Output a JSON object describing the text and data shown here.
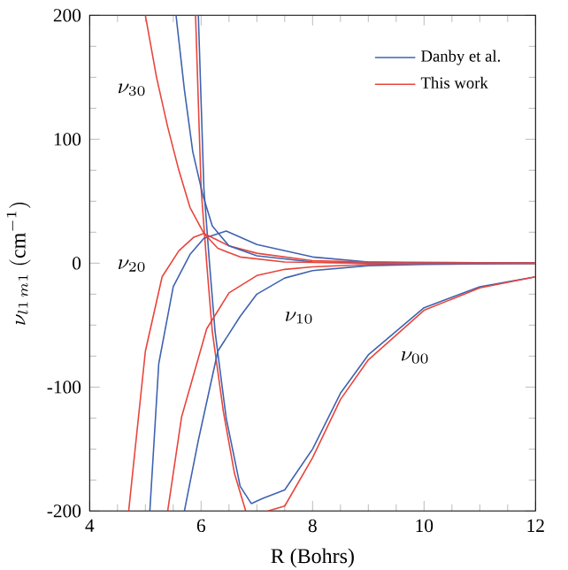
{
  "chart_data": {
    "type": "line",
    "xlabel": "R (Bohrs)",
    "ylabel": "\\nu_{l1\\,m1}\\ (\\mathrm{cm}^{-1})",
    "xlim": [
      4,
      12
    ],
    "ylim": [
      -200,
      200
    ],
    "xticks": [
      4,
      6,
      8,
      10,
      12
    ],
    "yticks": [
      -200,
      -100,
      0,
      100,
      200
    ],
    "legend": "top right",
    "series": [
      {
        "name": "Danby et al.",
        "color": "#3f63b0",
        "x": [
          5.95,
          6.05,
          6.15,
          6.25,
          6.45,
          6.7,
          6.9,
          7.1,
          7.5,
          8,
          8.5,
          9,
          10,
          11,
          12
        ],
        "values": [
          200,
          60,
          0,
          -55,
          -125,
          -180,
          -194,
          -190,
          -183,
          -150,
          -105,
          -74,
          -36,
          -19,
          -11
        ]
      },
      {
        "name": "This work",
        "color": "#e8453c",
        "x": [
          5.9,
          6.0,
          6.1,
          6.2,
          6.4,
          6.6,
          6.8,
          7.0,
          7.2,
          7.5,
          8,
          8.5,
          9,
          10,
          11,
          12
        ],
        "values": [
          200,
          60,
          0,
          -55,
          -120,
          -170,
          -200,
          null,
          -200,
          -196,
          -157,
          -110,
          -78,
          -38,
          -20,
          -11
        ]
      },
      {
        "color": "#3f63b0",
        "x": [
          5.7,
          5.95,
          6.3,
          6.7,
          7,
          7.5,
          8,
          9,
          10,
          12
        ],
        "values": [
          -200,
          -143,
          -71,
          -43,
          -25,
          -12,
          -6,
          -2,
          -1,
          0
        ]
      },
      {
        "color": "#e8453c",
        "x": [
          5.4,
          5.65,
          6.1,
          6.5,
          7,
          7.5,
          8,
          9,
          10,
          12
        ],
        "values": [
          -200,
          -124,
          -53,
          -24,
          -10,
          -5,
          -3,
          -1,
          0,
          0
        ]
      },
      {
        "color": "#3f63b0",
        "x": [
          5.08,
          5.24,
          5.5,
          5.8,
          6.05,
          6.45,
          7,
          8,
          9,
          10,
          12
        ],
        "values": [
          -200,
          -81,
          -19,
          7,
          20,
          26,
          15,
          5,
          1,
          0,
          0
        ]
      },
      {
        "color": "#e8453c",
        "x": [
          4.7,
          5.0,
          5.3,
          5.6,
          5.87,
          6.05,
          6.5,
          7,
          8,
          9,
          12
        ],
        "values": [
          -200,
          -71,
          -11,
          10,
          21,
          24,
          14,
          8,
          2,
          1,
          0
        ]
      },
      {
        "color": "#3f63b0",
        "x": [
          5.55,
          5.7,
          5.85,
          6.03,
          6.2,
          6.5,
          7,
          8,
          9,
          12
        ],
        "values": [
          200,
          140,
          90,
          55,
          30,
          14,
          6,
          1,
          0,
          0
        ]
      },
      {
        "color": "#e8453c",
        "x": [
          5.0,
          5.2,
          5.4,
          5.6,
          5.8,
          6.05,
          6.3,
          6.7,
          7.5,
          9,
          12
        ],
        "values": [
          200,
          150,
          110,
          75,
          45,
          24,
          12,
          5,
          1,
          0,
          0
        ]
      }
    ],
    "annotations": [
      "\\nu_{30}",
      "\\nu_{20}",
      "\\nu_{10}",
      "\\nu_{00}"
    ]
  }
}
